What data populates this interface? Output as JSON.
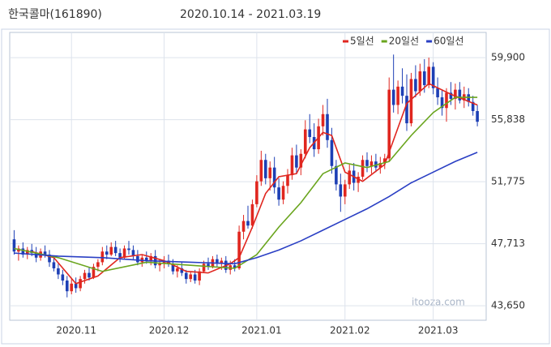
{
  "chart_data": {
    "type": "candlestick",
    "title": "한국콜마(161890)",
    "subtitle": "2020.10.14 - 2021.03.19",
    "watermark": "itooza.com",
    "up_color": "#e0261f",
    "down_color": "#1d3fb5",
    "xlim": [
      -1,
      107
    ],
    "ylim": [
      42700,
      61550
    ],
    "yticks": [
      {
        "value": 43650,
        "label": "43,650"
      },
      {
        "value": 47713,
        "label": "47,713"
      },
      {
        "value": 51775,
        "label": "51,775"
      },
      {
        "value": 55838,
        "label": "55,838"
      },
      {
        "value": 59900,
        "label": "59,900"
      }
    ],
    "xticks": [
      {
        "value": 13,
        "label": "2020.11"
      },
      {
        "value": 34,
        "label": "2020.12"
      },
      {
        "value": 55,
        "label": "2021.01"
      },
      {
        "value": 75,
        "label": "2021.02"
      },
      {
        "value": 95,
        "label": "2021.03"
      }
    ],
    "grid": true,
    "legend": "top-right",
    "x": [
      0,
      1,
      2,
      3,
      4,
      5,
      6,
      7,
      8,
      9,
      10,
      11,
      12,
      13,
      14,
      15,
      16,
      17,
      18,
      19,
      20,
      21,
      22,
      23,
      24,
      25,
      26,
      27,
      28,
      29,
      30,
      31,
      32,
      33,
      34,
      35,
      36,
      37,
      38,
      39,
      40,
      41,
      42,
      43,
      44,
      45,
      46,
      47,
      48,
      49,
      50,
      51,
      52,
      53,
      54,
      55,
      56,
      57,
      58,
      59,
      60,
      61,
      62,
      63,
      64,
      65,
      66,
      67,
      68,
      69,
      70,
      71,
      72,
      73,
      74,
      75,
      76,
      77,
      78,
      79,
      80,
      81,
      82,
      83,
      84,
      85,
      86,
      87,
      88,
      89,
      90,
      91,
      92,
      93,
      94,
      95,
      96,
      97,
      98,
      99,
      100,
      101,
      102,
      103,
      104,
      105
    ],
    "open": [
      48000,
      47200,
      47400,
      47000,
      47300,
      47100,
      46800,
      47200,
      47000,
      46500,
      46100,
      45700,
      45300,
      44600,
      45100,
      44800,
      45400,
      45800,
      45500,
      46200,
      46500,
      47200,
      47000,
      47500,
      47100,
      46800,
      47400,
      47300,
      46900,
      46500,
      46800,
      46600,
      46900,
      46300,
      46400,
      46600,
      46400,
      45900,
      46100,
      45800,
      45400,
      45700,
      45300,
      45900,
      46400,
      46200,
      46700,
      46400,
      46600,
      46000,
      46300,
      46100,
      48500,
      49200,
      48900,
      50300,
      51800,
      53200,
      52000,
      52700,
      51400,
      50600,
      51500,
      52200,
      53500,
      52700,
      53600,
      55200,
      54700,
      53900,
      55400,
      56200,
      54500,
      52800,
      51600,
      50800,
      51600,
      52500,
      51700,
      52100,
      53200,
      52800,
      53100,
      52700,
      53000,
      53300,
      57800,
      56800,
      58000,
      57400,
      55600,
      58500,
      57700,
      59000,
      58100,
      59300,
      57900,
      57300,
      56600,
      57600,
      57200,
      57800,
      57100,
      57500,
      57000,
      56400
    ],
    "high": [
      48600,
      47600,
      47800,
      47500,
      47700,
      47500,
      47400,
      47600,
      47300,
      46900,
      46400,
      46000,
      45600,
      45400,
      45500,
      45600,
      46000,
      46200,
      46400,
      46700,
      47500,
      47600,
      47800,
      47900,
      47400,
      47600,
      47900,
      47600,
      47300,
      47000,
      47200,
      47100,
      47300,
      46700,
      46900,
      47000,
      46700,
      46300,
      46500,
      46000,
      45900,
      46000,
      46100,
      46600,
      46800,
      46900,
      47000,
      46800,
      46900,
      46600,
      46700,
      48900,
      49600,
      50200,
      50600,
      52200,
      53800,
      53600,
      53100,
      53400,
      52000,
      51800,
      52600,
      54000,
      54200,
      53900,
      55800,
      56200,
      55600,
      55900,
      56800,
      57200,
      55300,
      53200,
      52300,
      51900,
      52900,
      53000,
      52400,
      53500,
      53700,
      53500,
      53600,
      53400,
      53600,
      58600,
      60100,
      58400,
      59200,
      58800,
      58900,
      59400,
      59500,
      59800,
      59900,
      59600,
      58600,
      57800,
      57900,
      58300,
      58200,
      58300,
      58000,
      57900,
      57400,
      56800
    ],
    "low": [
      47000,
      46600,
      46800,
      46700,
      46900,
      46500,
      46600,
      46800,
      46200,
      45900,
      45400,
      45000,
      44200,
      44400,
      44500,
      44600,
      45100,
      45300,
      45400,
      45900,
      46300,
      46700,
      46900,
      46900,
      46500,
      46700,
      47000,
      46700,
      46300,
      46200,
      46400,
      46300,
      46100,
      45900,
      46100,
      46200,
      45700,
      45500,
      45600,
      45100,
      45200,
      45100,
      45000,
      45800,
      46000,
      46100,
      46200,
      46000,
      45800,
      45700,
      45900,
      46000,
      48000,
      48700,
      48700,
      50100,
      51500,
      51600,
      51200,
      51000,
      50200,
      50300,
      51000,
      51900,
      52300,
      52200,
      53300,
      54300,
      53400,
      53600,
      54800,
      54000,
      52300,
      51200,
      49800,
      50300,
      51300,
      51200,
      51100,
      51900,
      52400,
      52300,
      52400,
      52300,
      52600,
      53100,
      56300,
      56200,
      56900,
      55100,
      55400,
      57300,
      57400,
      57600,
      57900,
      57500,
      56800,
      56100,
      55700,
      56800,
      56500,
      56900,
      56600,
      56700,
      56100,
      55400
    ],
    "close": [
      47200,
      47400,
      47000,
      47300,
      47100,
      46800,
      47200,
      47000,
      46500,
      46100,
      45700,
      45300,
      44600,
      45100,
      44800,
      45400,
      45800,
      45500,
      46200,
      46500,
      47200,
      47000,
      47500,
      47100,
      46800,
      47400,
      47300,
      46900,
      46500,
      46800,
      46600,
      46900,
      46300,
      46400,
      46600,
      46400,
      45900,
      46100,
      45800,
      45400,
      45700,
      45300,
      45900,
      46400,
      46200,
      46700,
      46400,
      46600,
      46000,
      46300,
      46100,
      48500,
      49200,
      48900,
      50300,
      51800,
      53200,
      52000,
      52700,
      51400,
      50600,
      51500,
      52200,
      53500,
      52700,
      53600,
      55200,
      54700,
      53900,
      55400,
      56200,
      54500,
      52800,
      51600,
      50800,
      51600,
      52500,
      51700,
      52100,
      53200,
      52800,
      53100,
      52700,
      53000,
      53300,
      57800,
      56800,
      58000,
      57400,
      55600,
      58500,
      57700,
      59000,
      58100,
      59300,
      57900,
      57300,
      56600,
      57600,
      57200,
      57800,
      57100,
      57500,
      57000,
      56400,
      55700
    ],
    "series": [
      {
        "name": "5일선",
        "color": "#e0261f",
        "x": [
          4,
          9,
          14,
          19,
          24,
          29,
          34,
          39,
          44,
          49,
          51,
          54,
          57,
          60,
          64,
          67,
          70,
          72,
          75,
          79,
          84,
          86,
          89,
          94,
          99,
          105
        ],
        "values": [
          47200,
          46800,
          45100,
          45600,
          46800,
          47000,
          46600,
          45900,
          45800,
          46400,
          46800,
          48800,
          51000,
          52100,
          52300,
          54000,
          55000,
          54800,
          52400,
          51800,
          52900,
          54500,
          56900,
          58200,
          57500,
          56800
        ]
      },
      {
        "name": "20일선",
        "color": "#6aa51e",
        "x": [
          0,
          10,
          20,
          30,
          40,
          50,
          55,
          60,
          65,
          70,
          75,
          80,
          85,
          90,
          95,
          100,
          105
        ],
        "values": [
          47400,
          46800,
          45900,
          46500,
          46300,
          46100,
          47000,
          48800,
          50400,
          52300,
          53000,
          52700,
          53100,
          54800,
          56300,
          57300,
          57300
        ]
      },
      {
        "name": "60일선",
        "color": "#2a3fc4",
        "x": [
          0,
          10,
          20,
          30,
          40,
          50,
          55,
          60,
          65,
          70,
          75,
          80,
          85,
          90,
          95,
          100,
          105
        ],
        "values": [
          47100,
          46900,
          46800,
          46600,
          46500,
          46400,
          46800,
          47300,
          47900,
          48600,
          49300,
          50000,
          50800,
          51700,
          52400,
          53100,
          53700
        ]
      }
    ]
  }
}
